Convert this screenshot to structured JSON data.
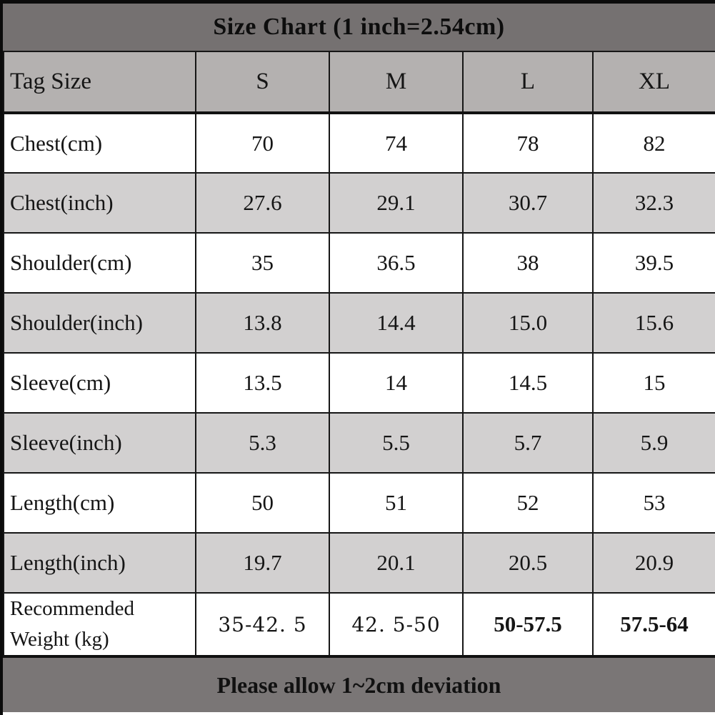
{
  "title": "Size Chart (1 inch=2.54cm)",
  "footer_note": "Please allow 1~2cm deviation",
  "colors": {
    "title_band": "#757171",
    "footer_band": "#7a7676",
    "header_row": "#b4b1b0",
    "alt_row": "#d2d0d0",
    "row": "#ffffff",
    "border": "#161616",
    "edge_bar": "#0b0b0b"
  },
  "chart_data": {
    "type": "table",
    "title": "Size Chart (1 inch=2.54cm)",
    "columns": [
      "Tag Size",
      "S",
      "M",
      "L",
      "XL"
    ],
    "rows": [
      {
        "label": "Chest(cm)",
        "values": [
          "70",
          "74",
          "78",
          "82"
        ]
      },
      {
        "label": "Chest(inch)",
        "values": [
          "27.6",
          "29.1",
          "30.7",
          "32.3"
        ]
      },
      {
        "label": "Shoulder(cm)",
        "values": [
          "35",
          "36.5",
          "38",
          "39.5"
        ]
      },
      {
        "label": "Shoulder(inch)",
        "values": [
          "13.8",
          "14.4",
          "15.0",
          "15.6"
        ]
      },
      {
        "label": "Sleeve(cm)",
        "values": [
          "13.5",
          "14",
          "14.5",
          "15"
        ]
      },
      {
        "label": "Sleeve(inch)",
        "values": [
          "5.3",
          "5.5",
          "5.7",
          "5.9"
        ]
      },
      {
        "label": "Length(cm)",
        "values": [
          "50",
          "51",
          "52",
          "53"
        ]
      },
      {
        "label": "Length(inch)",
        "values": [
          "19.7",
          "20.1",
          "20.5",
          "20.9"
        ]
      },
      {
        "label": "Recommended Weight (kg)",
        "values": [
          "35-42. 5",
          "42. 5-50",
          "50-57.5",
          "57.5-64"
        ]
      }
    ],
    "annotations": [
      "Please allow 1~2cm deviation"
    ],
    "layout": {
      "alternating_row_shading": true,
      "label_column_align": "left",
      "value_align": "center"
    }
  }
}
